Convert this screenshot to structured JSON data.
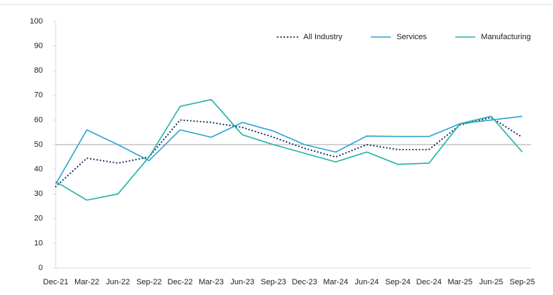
{
  "chart_data": {
    "type": "line",
    "categories": [
      "Dec-21",
      "Mar-22",
      "Jun-22",
      "Sep-22",
      "Dec-22",
      "Mar-23",
      "Jun-23",
      "Sep-23",
      "Dec-23",
      "Mar-24",
      "Jun-24",
      "Sep-24",
      "Dec-24",
      "Mar-25",
      "Jun-25",
      "Sep-25"
    ],
    "series": [
      {
        "name": "All Industry",
        "color": "#1f3864",
        "style": "dotted",
        "values": [
          33,
          44.5,
          42.5,
          45,
          60,
          59,
          57,
          53,
          48.5,
          45,
          50,
          48,
          48,
          58,
          61,
          53
        ]
      },
      {
        "name": "Services",
        "color": "#2aa3d4",
        "style": "solid",
        "values": [
          34,
          56,
          50,
          43.5,
          56,
          53,
          59,
          55.5,
          50,
          47,
          53.5,
          53.3,
          53.3,
          58.5,
          60,
          61.5
        ]
      },
      {
        "name": "Manufacturing",
        "color": "#1fb3a5",
        "style": "solid",
        "values": [
          35,
          27.5,
          30,
          45,
          65.5,
          68.3,
          54,
          50,
          46.5,
          43,
          47,
          42,
          42.5,
          58.5,
          61.5,
          47
        ]
      }
    ],
    "ylim": [
      0,
      100
    ],
    "yticks": [
      0,
      10,
      20,
      30,
      40,
      50,
      60,
      70,
      80,
      90,
      100
    ],
    "reference_line": 50,
    "reference_color": "#a6a6a6",
    "legend": "top-right"
  }
}
